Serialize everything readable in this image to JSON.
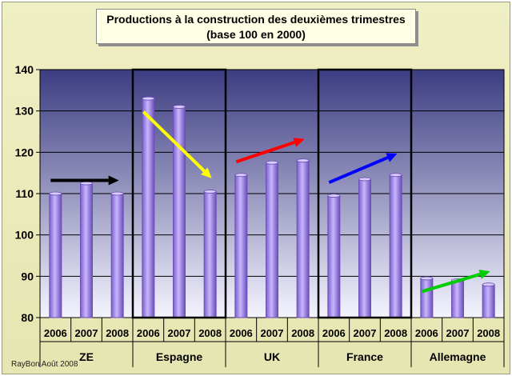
{
  "title": {
    "line1": "Productions à la construction des deuxièmes trimestres",
    "line2": "(base 100 en 2000)"
  },
  "credit": "RayBon Août 2008",
  "colors": {
    "bar_fill": "#b49bf0",
    "bar_dark": "#6a4fb8",
    "plot_top": "#3c3c82",
    "plot_bottom": "#f4f4ff"
  },
  "chart_data": {
    "type": "bar",
    "ylim": [
      80,
      140
    ],
    "y_ticks": [
      80,
      90,
      100,
      110,
      120,
      130,
      140
    ],
    "grid": true,
    "groups": [
      {
        "name": "ZE",
        "categories": [
          "2006",
          "2007",
          "2008"
        ],
        "values": [
          110,
          112.5,
          110
        ],
        "highlight": false,
        "trend_color": "#000000"
      },
      {
        "name": "Espagne",
        "categories": [
          "2006",
          "2007",
          "2008"
        ],
        "values": [
          133,
          131,
          110.5
        ],
        "highlight": true,
        "trend_color": "#ffff00"
      },
      {
        "name": "UK",
        "categories": [
          "2006",
          "2007",
          "2008"
        ],
        "values": [
          114.5,
          117.5,
          118
        ],
        "highlight": false,
        "trend_color": "#ff0000"
      },
      {
        "name": "France",
        "categories": [
          "2006",
          "2007",
          "2008"
        ],
        "values": [
          109.5,
          113.5,
          114.5
        ],
        "highlight": true,
        "trend_color": "#0000ff"
      },
      {
        "name": "Allemagne",
        "categories": [
          "2006",
          "2007",
          "2008"
        ],
        "values": [
          89.5,
          89,
          88
        ],
        "highlight": false,
        "trend_color": "#00cc00"
      }
    ]
  }
}
